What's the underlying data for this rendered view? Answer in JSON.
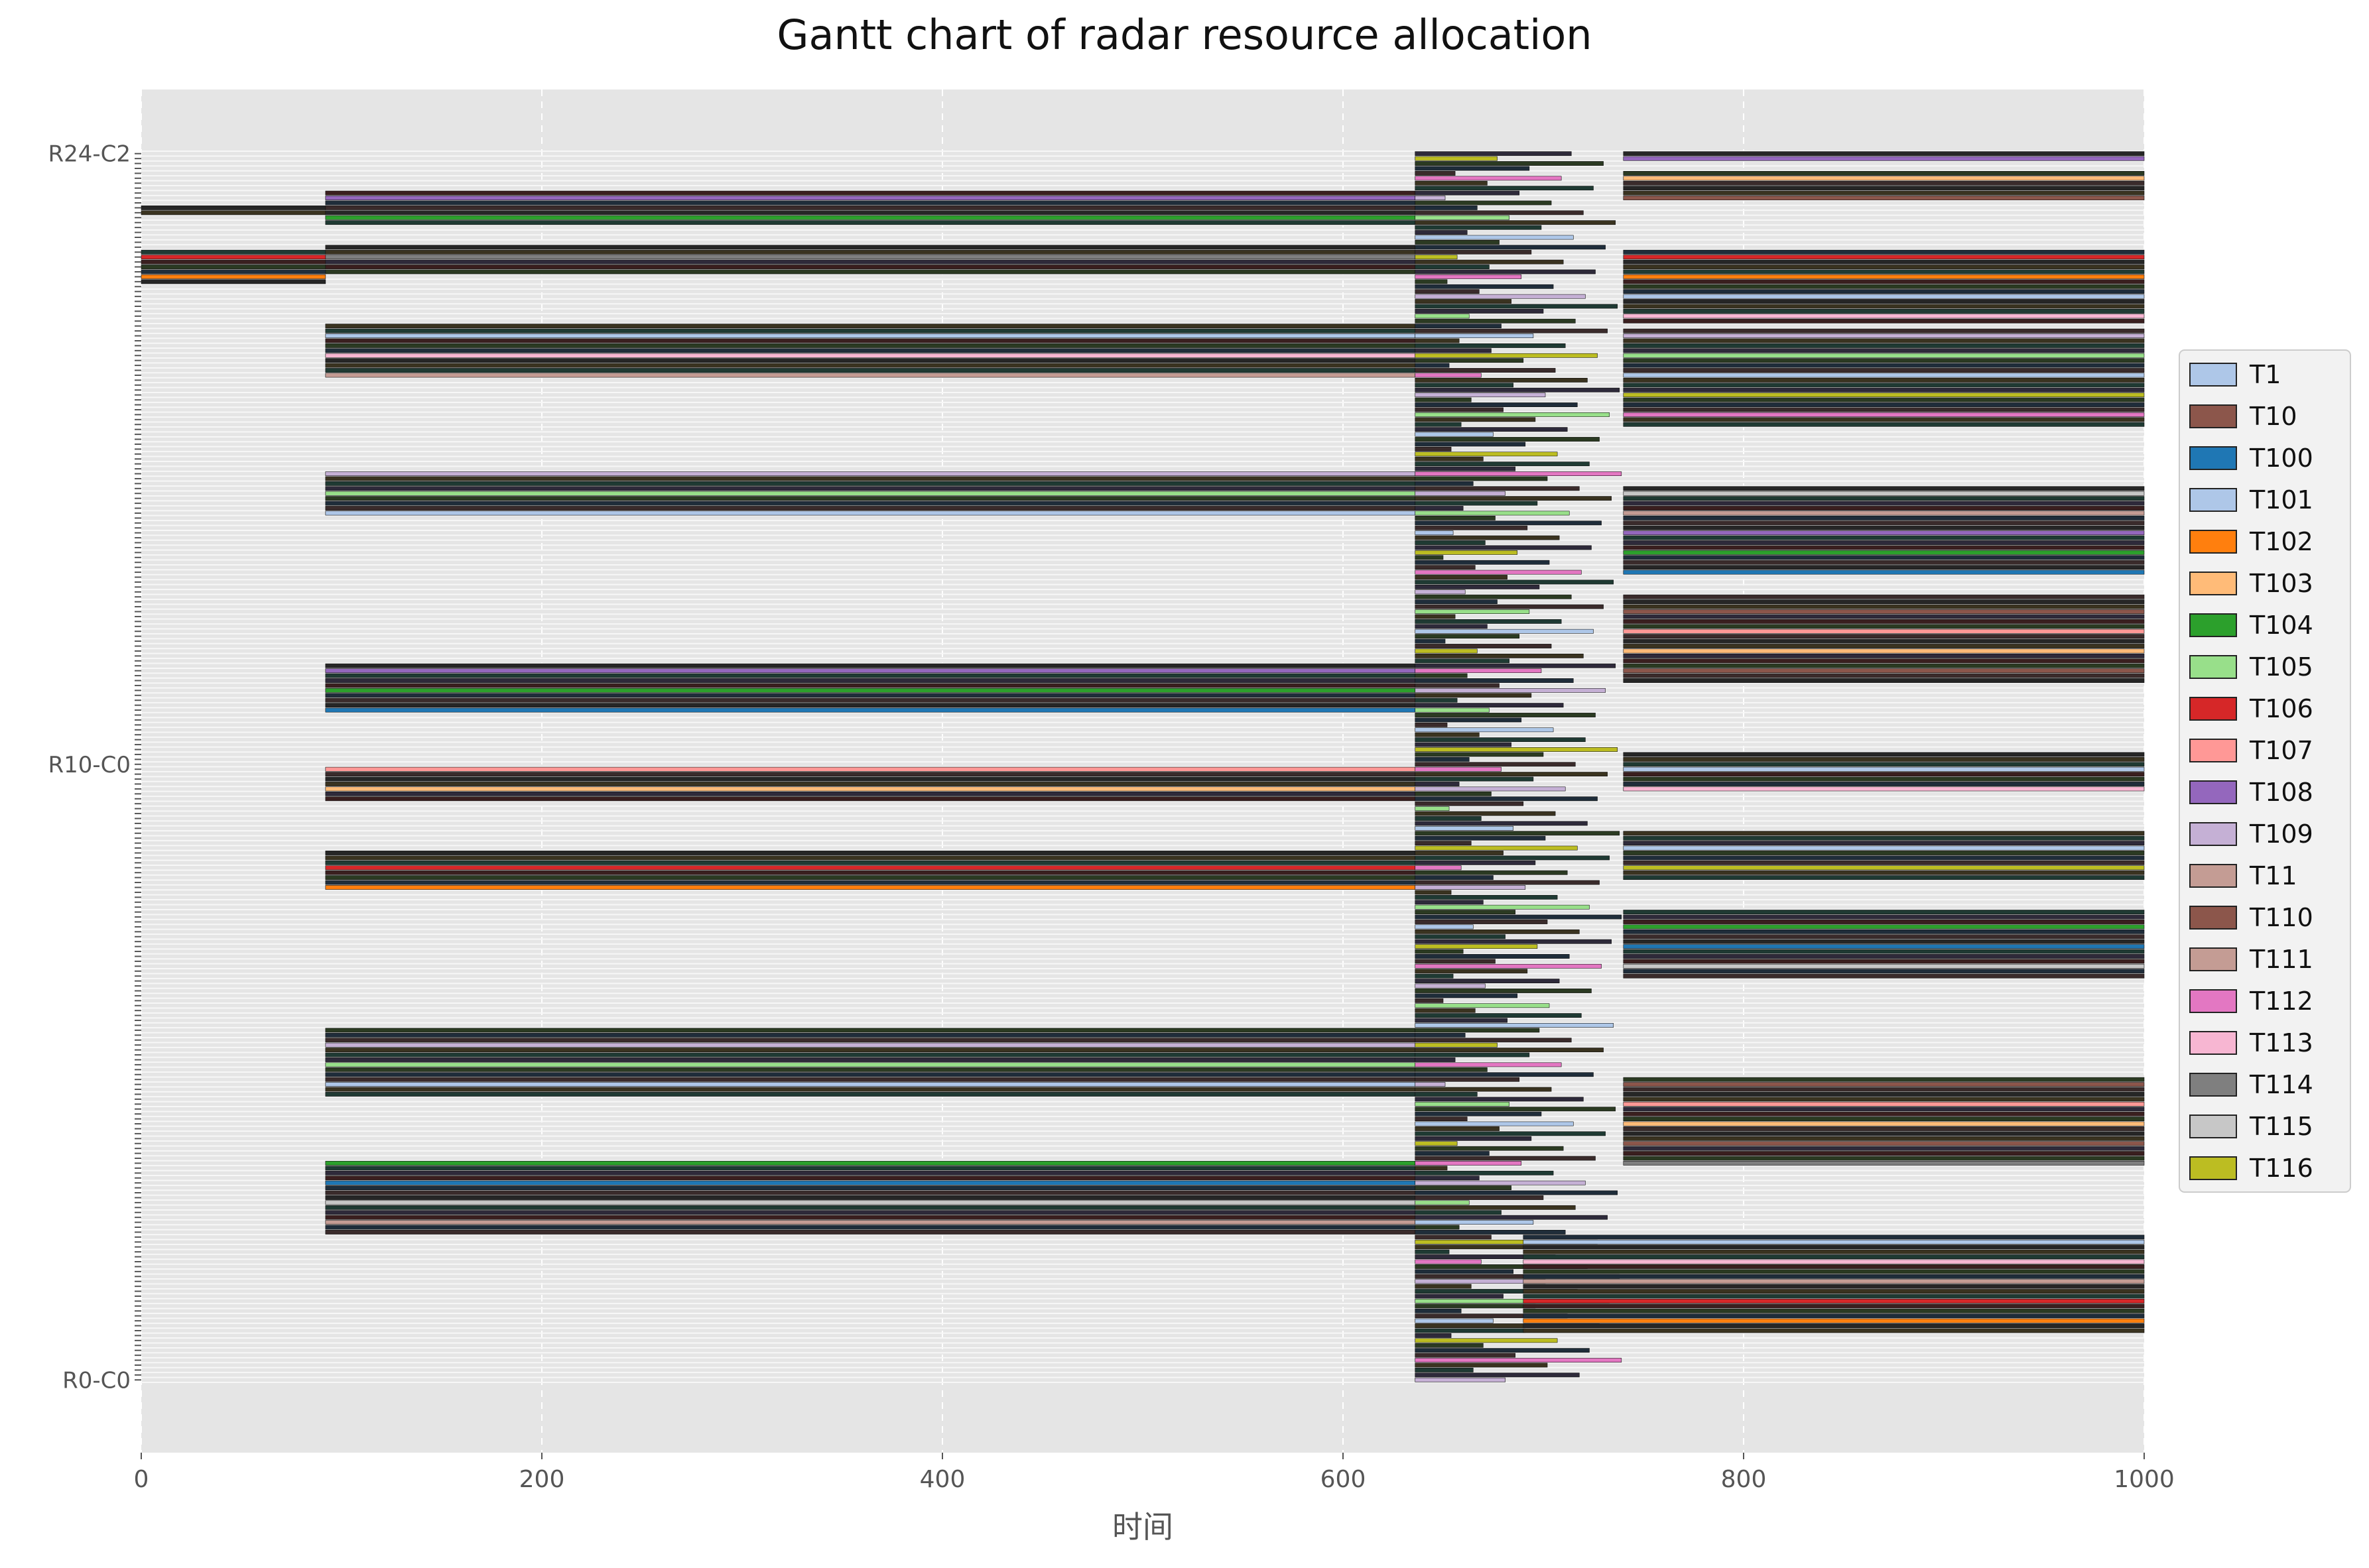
{
  "chart_data": {
    "type": "gantt",
    "title": "Gantt chart of radar resource allocation",
    "xlabel": "时间",
    "ylabel": "",
    "xlim": [
      0,
      1000
    ],
    "x_ticks": [
      0,
      200,
      400,
      600,
      800,
      1000
    ],
    "grid": true,
    "legend_position": "right",
    "legend": [
      {
        "label": "T1",
        "color": "#aec7e8"
      },
      {
        "label": "T10",
        "color": "#8c564b"
      },
      {
        "label": "T100",
        "color": "#1f77b4"
      },
      {
        "label": "T101",
        "color": "#aec7e8"
      },
      {
        "label": "T102",
        "color": "#ff7f0e"
      },
      {
        "label": "T103",
        "color": "#ffbb78"
      },
      {
        "label": "T104",
        "color": "#2ca02c"
      },
      {
        "label": "T105",
        "color": "#98df8a"
      },
      {
        "label": "T106",
        "color": "#d62728"
      },
      {
        "label": "T107",
        "color": "#ff9896"
      },
      {
        "label": "T108",
        "color": "#9467bd"
      },
      {
        "label": "T109",
        "color": "#c5b0d5"
      },
      {
        "label": "T11",
        "color": "#c49c94"
      },
      {
        "label": "T110",
        "color": "#8c564b"
      },
      {
        "label": "T111",
        "color": "#c49c94"
      },
      {
        "label": "T112",
        "color": "#e377c2"
      },
      {
        "label": "T113",
        "color": "#f7b6d2"
      },
      {
        "label": "T114",
        "color": "#7f7f7f"
      },
      {
        "label": "T115",
        "color": "#c7c7c7"
      },
      {
        "label": "T116",
        "color": "#bcbd22"
      }
    ],
    "y_tick_labels_visible": [
      "R0-C0",
      "R10-C0",
      "R24-C2"
    ],
    "row_count": 250,
    "series_summary": "Dense overlapping task intervals; most rows active from ~92 to ~636, heavy fragmented activity 636–740, long blocks 740–1000.",
    "segments": [
      {
        "row_from": 223,
        "row_to": 230,
        "start": 0,
        "end": 92
      },
      {
        "row_from": 237,
        "row_to": 239,
        "start": 0,
        "end": 92
      },
      {
        "row_from": 30,
        "row_to": 45,
        "start": 92,
        "end": 636
      },
      {
        "row_from": 58,
        "row_to": 72,
        "start": 92,
        "end": 636
      },
      {
        "row_from": 100,
        "row_to": 108,
        "start": 92,
        "end": 636
      },
      {
        "row_from": 118,
        "row_to": 125,
        "start": 92,
        "end": 636
      },
      {
        "row_from": 136,
        "row_to": 146,
        "start": 92,
        "end": 636
      },
      {
        "row_from": 176,
        "row_to": 185,
        "start": 92,
        "end": 636
      },
      {
        "row_from": 204,
        "row_to": 215,
        "start": 92,
        "end": 636
      },
      {
        "row_from": 225,
        "row_to": 231,
        "start": 92,
        "end": 636
      },
      {
        "row_from": 235,
        "row_to": 242,
        "start": 92,
        "end": 636
      },
      {
        "row_from": 0,
        "row_to": 250,
        "start": 636,
        "end": 740
      },
      {
        "row_from": 10,
        "row_to": 30,
        "start": 690,
        "end": 1000
      },
      {
        "row_from": 44,
        "row_to": 62,
        "start": 740,
        "end": 1000
      },
      {
        "row_from": 82,
        "row_to": 96,
        "start": 740,
        "end": 1000
      },
      {
        "row_from": 102,
        "row_to": 112,
        "start": 740,
        "end": 1000
      },
      {
        "row_from": 120,
        "row_to": 128,
        "start": 740,
        "end": 1000
      },
      {
        "row_from": 142,
        "row_to": 160,
        "start": 740,
        "end": 1000
      },
      {
        "row_from": 164,
        "row_to": 182,
        "start": 740,
        "end": 1000
      },
      {
        "row_from": 194,
        "row_to": 214,
        "start": 740,
        "end": 1000
      },
      {
        "row_from": 215,
        "row_to": 230,
        "start": 740,
        "end": 1000
      },
      {
        "row_from": 240,
        "row_to": 246,
        "start": 740,
        "end": 1000
      },
      {
        "row_from": 248,
        "row_to": 250,
        "start": 740,
        "end": 1000
      }
    ]
  }
}
